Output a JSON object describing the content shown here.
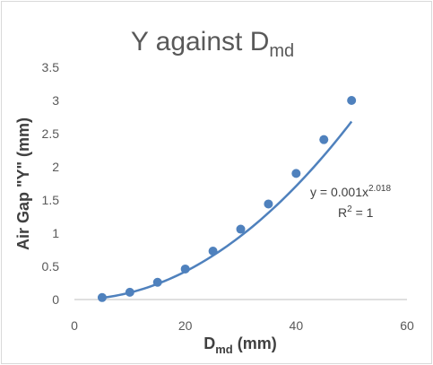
{
  "chart_data": {
    "type": "scatter",
    "title": {
      "main": "Y against D",
      "sub": "md"
    },
    "xlabel": {
      "main": "D",
      "sub": "md",
      "suffix": " (mm)"
    },
    "ylabel": "Air Gap \"Y\" (mm)",
    "xlim": [
      0,
      60
    ],
    "ylim": [
      0,
      3.5
    ],
    "x_ticks": [
      "0",
      "20",
      "40",
      "60"
    ],
    "y_ticks": [
      "0",
      "0.5",
      "1",
      "1.5",
      "2",
      "2.5",
      "3",
      "3.5"
    ],
    "grid": false,
    "legend": "none",
    "series": [
      {
        "x": [
          5,
          10,
          15,
          20,
          25,
          30,
          35,
          40,
          45,
          50
        ],
        "y": [
          0.03,
          0.11,
          0.26,
          0.46,
          0.73,
          1.06,
          1.44,
          1.9,
          2.41,
          3.0
        ]
      }
    ],
    "trendline": {
      "type": "power",
      "coef": 0.001,
      "exp": 2.018
    },
    "equation": {
      "prefix": "y = 0.001x",
      "exponent": "2.018"
    },
    "r_squared": {
      "prefix": "R",
      "exponent": "2",
      "suffix": " = 1"
    },
    "colors": {
      "series": "#4f81bd",
      "axis": "#bfbfbf",
      "text": "#595959"
    }
  }
}
